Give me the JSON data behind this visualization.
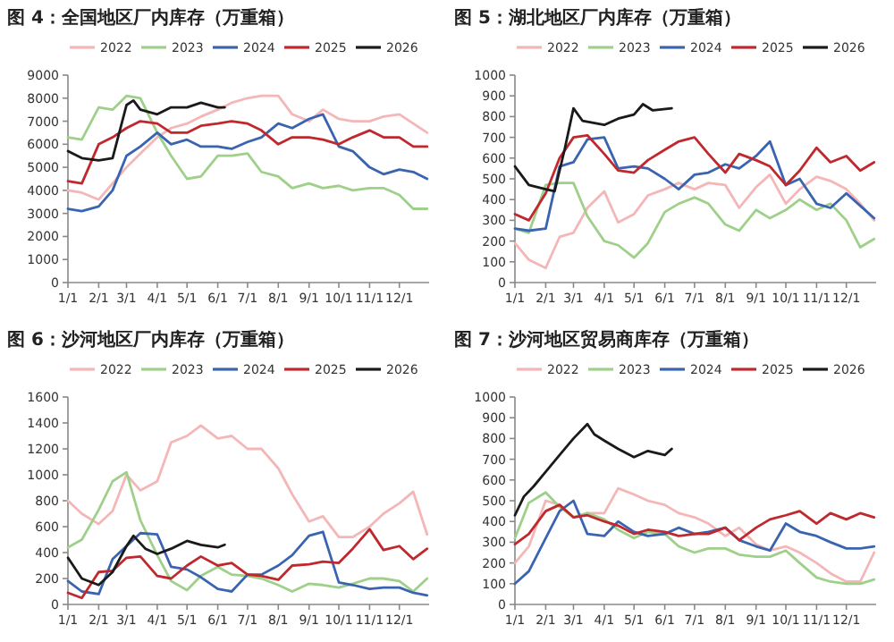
{
  "chart_data": [
    {
      "type": "line",
      "title": "图 4：全国地区厂内库存（万重箱）",
      "legend": "top",
      "grid": false,
      "x": [
        "--01-01",
        "--01-15",
        "--02-01",
        "--02-15",
        "--03-01",
        "--03-15",
        "--04-01",
        "--04-15",
        "--05-01",
        "--05-15",
        "--06-01",
        "--06-15",
        "--07-01",
        "--07-15",
        "--08-01",
        "--08-15",
        "--09-01",
        "--09-15",
        "--10-01",
        "--10-15",
        "--11-01",
        "--11-15",
        "--12-01",
        "--12-15",
        "--12-29"
      ],
      "xlim": [
        "--01-01",
        "--12-31"
      ],
      "xticks": [
        {
          "value": "--01-01",
          "label": "1/1"
        },
        {
          "value": "--02-01",
          "label": "2/1"
        },
        {
          "value": "--03-01",
          "label": "3/1"
        },
        {
          "value": "--04-01",
          "label": "4/1"
        },
        {
          "value": "--05-01",
          "label": "5/1"
        },
        {
          "value": "--06-01",
          "label": "6/1"
        },
        {
          "value": "--07-01",
          "label": "7/1"
        },
        {
          "value": "--08-01",
          "label": "8/1"
        },
        {
          "value": "--09-01",
          "label": "9/1"
        },
        {
          "value": "--10-01",
          "label": "10/1"
        },
        {
          "value": "--11-01",
          "label": "11/1"
        },
        {
          "value": "--12-01",
          "label": "12/1"
        }
      ],
      "ylim": [
        0,
        9000
      ],
      "yticks": [
        0,
        1000,
        2000,
        3000,
        4000,
        5000,
        6000,
        7000,
        8000,
        9000
      ],
      "series": [
        {
          "name": "2022",
          "color": "#f4b6b6",
          "values": [
            4000,
            3900,
            3600,
            4300,
            5000,
            5600,
            6300,
            6700,
            6900,
            7200,
            7500,
            7800,
            8000,
            8100,
            8100,
            7300,
            7000,
            7500,
            7100,
            7000,
            7000,
            7200,
            7300,
            6900,
            6500
          ]
        },
        {
          "name": "2023",
          "color": "#9fd08a",
          "values": [
            6300,
            6200,
            7600,
            7500,
            8100,
            8000,
            6500,
            5500,
            4500,
            4600,
            5500,
            5500,
            5600,
            4800,
            4600,
            4100,
            4300,
            4100,
            4200,
            4000,
            4100,
            4100,
            3800,
            3200,
            3200
          ]
        },
        {
          "name": "2024",
          "color": "#3a64b0",
          "values": [
            3200,
            3100,
            3300,
            4000,
            5500,
            5900,
            6500,
            6000,
            6200,
            5900,
            5900,
            5800,
            6100,
            6300,
            6900,
            6700,
            7100,
            7300,
            5900,
            5700,
            5000,
            4700,
            4900,
            4800,
            4500
          ]
        },
        {
          "name": "2025",
          "color": "#c0282d",
          "values": [
            4400,
            4300,
            6000,
            6300,
            6700,
            7000,
            6900,
            6500,
            6500,
            6800,
            6900,
            7000,
            6900,
            6600,
            6000,
            6300,
            6300,
            6200,
            6000,
            6300,
            6600,
            6300,
            6300,
            5900,
            5900
          ]
        },
        {
          "name": "2026",
          "color": "#1a1a1a",
          "x": [
            "--01-01",
            "--01-15",
            "--02-01",
            "--02-15",
            "--03-01",
            "--03-08",
            "--03-15",
            "--04-01",
            "--04-15",
            "--05-01",
            "--05-15",
            "--06-01",
            "--06-08"
          ],
          "values": [
            5700,
            5400,
            5300,
            5400,
            7700,
            7900,
            7500,
            7300,
            7600,
            7600,
            7800,
            7600,
            7600
          ]
        }
      ]
    },
    {
      "type": "line",
      "title": "图 5：湖北地区厂内库存（万重箱）",
      "legend": "top",
      "grid": false,
      "x": [
        "--01-01",
        "--01-15",
        "--02-01",
        "--02-15",
        "--03-01",
        "--03-15",
        "--04-01",
        "--04-15",
        "--05-01",
        "--05-15",
        "--06-01",
        "--06-15",
        "--07-01",
        "--07-15",
        "--08-01",
        "--08-15",
        "--09-01",
        "--09-15",
        "--10-01",
        "--10-15",
        "--11-01",
        "--11-15",
        "--12-01",
        "--12-15",
        "--12-29"
      ],
      "xlim": [
        "--01-01",
        "--12-31"
      ],
      "xticks": [
        {
          "value": "--01-01",
          "label": "1/1"
        },
        {
          "value": "--02-01",
          "label": "2/1"
        },
        {
          "value": "--03-01",
          "label": "3/1"
        },
        {
          "value": "--04-01",
          "label": "4/1"
        },
        {
          "value": "--05-01",
          "label": "5/1"
        },
        {
          "value": "--06-01",
          "label": "6/1"
        },
        {
          "value": "--07-01",
          "label": "7/1"
        },
        {
          "value": "--08-01",
          "label": "8/1"
        },
        {
          "value": "--09-01",
          "label": "9/1"
        },
        {
          "value": "--10-01",
          "label": "10/1"
        },
        {
          "value": "--11-01",
          "label": "11/1"
        },
        {
          "value": "--12-01",
          "label": "12/1"
        }
      ],
      "ylim": [
        0,
        1000
      ],
      "yticks": [
        0,
        100,
        200,
        300,
        400,
        500,
        600,
        700,
        800,
        900,
        1000
      ],
      "series": [
        {
          "name": "2022",
          "color": "#f4b6b6",
          "values": [
            190,
            110,
            70,
            220,
            240,
            360,
            440,
            290,
            330,
            420,
            450,
            480,
            450,
            480,
            470,
            360,
            460,
            520,
            380,
            450,
            510,
            490,
            450,
            380,
            300
          ]
        },
        {
          "name": "2023",
          "color": "#9fd08a",
          "values": [
            260,
            240,
            470,
            480,
            480,
            320,
            200,
            180,
            120,
            190,
            340,
            380,
            410,
            380,
            280,
            250,
            350,
            310,
            350,
            400,
            350,
            380,
            300,
            170,
            210
          ]
        },
        {
          "name": "2024",
          "color": "#3a64b0",
          "values": [
            260,
            250,
            260,
            560,
            580,
            690,
            700,
            550,
            560,
            550,
            500,
            450,
            520,
            530,
            570,
            550,
            610,
            680,
            470,
            500,
            380,
            360,
            430,
            370,
            310
          ]
        },
        {
          "name": "2025",
          "color": "#c0282d",
          "values": [
            330,
            300,
            430,
            600,
            700,
            710,
            620,
            540,
            530,
            590,
            640,
            680,
            700,
            620,
            530,
            620,
            590,
            560,
            470,
            540,
            650,
            580,
            610,
            540,
            580
          ]
        },
        {
          "name": "2026",
          "color": "#1a1a1a",
          "x": [
            "--01-01",
            "--01-15",
            "--02-01",
            "--02-10",
            "--02-20",
            "--03-01",
            "--03-10",
            "--04-01",
            "--04-15",
            "--05-01",
            "--05-10",
            "--05-20",
            "--06-08"
          ],
          "values": [
            560,
            470,
            450,
            440,
            640,
            840,
            780,
            760,
            790,
            810,
            860,
            830,
            840
          ]
        }
      ]
    },
    {
      "type": "line",
      "title": "图 6：沙河地区厂内库存（万重箱）",
      "legend": "top",
      "grid": false,
      "x": [
        "--01-01",
        "--01-15",
        "--02-01",
        "--02-15",
        "--03-01",
        "--03-15",
        "--04-01",
        "--04-15",
        "--05-01",
        "--05-15",
        "--06-01",
        "--06-15",
        "--07-01",
        "--07-15",
        "--08-01",
        "--08-15",
        "--09-01",
        "--09-15",
        "--10-01",
        "--10-15",
        "--11-01",
        "--11-15",
        "--12-01",
        "--12-15",
        "--12-29"
      ],
      "xlim": [
        "--01-01",
        "--12-31"
      ],
      "xticks": [
        {
          "value": "--01-01",
          "label": "1/1"
        },
        {
          "value": "--02-01",
          "label": "2/1"
        },
        {
          "value": "--03-01",
          "label": "3/1"
        },
        {
          "value": "--04-01",
          "label": "4/1"
        },
        {
          "value": "--05-01",
          "label": "5/1"
        },
        {
          "value": "--06-01",
          "label": "6/1"
        },
        {
          "value": "--07-01",
          "label": "7/1"
        },
        {
          "value": "--08-01",
          "label": "8/1"
        },
        {
          "value": "--09-01",
          "label": "9/1"
        },
        {
          "value": "--10-01",
          "label": "10/1"
        },
        {
          "value": "--11-01",
          "label": "11/1"
        },
        {
          "value": "--12-01",
          "label": "12/1"
        }
      ],
      "ylim": [
        0,
        1600
      ],
      "yticks": [
        0,
        200,
        400,
        600,
        800,
        1000,
        1200,
        1400,
        1600
      ],
      "series": [
        {
          "name": "2022",
          "color": "#f4b6b6",
          "values": [
            800,
            700,
            620,
            720,
            1000,
            880,
            950,
            1250,
            1300,
            1380,
            1280,
            1300,
            1200,
            1200,
            1050,
            850,
            640,
            680,
            520,
            520,
            600,
            700,
            780,
            870,
            540
          ]
        },
        {
          "name": "2023",
          "color": "#9fd08a",
          "values": [
            440,
            500,
            730,
            950,
            1020,
            650,
            380,
            180,
            110,
            220,
            290,
            230,
            220,
            200,
            150,
            100,
            160,
            150,
            130,
            160,
            200,
            200,
            180,
            100,
            200
          ]
        },
        {
          "name": "2024",
          "color": "#3a64b0",
          "values": [
            180,
            100,
            80,
            350,
            450,
            550,
            540,
            290,
            270,
            210,
            120,
            100,
            230,
            230,
            300,
            380,
            530,
            560,
            170,
            150,
            120,
            130,
            130,
            90,
            70
          ]
        },
        {
          "name": "2025",
          "color": "#c0282d",
          "values": [
            90,
            50,
            250,
            260,
            360,
            370,
            220,
            200,
            300,
            370,
            300,
            320,
            230,
            220,
            190,
            300,
            310,
            330,
            320,
            430,
            580,
            420,
            450,
            350,
            430
          ]
        },
        {
          "name": "2026",
          "color": "#1a1a1a",
          "x": [
            "--01-01",
            "--01-15",
            "--02-01",
            "--02-15",
            "--03-01",
            "--03-08",
            "--03-20",
            "--04-01",
            "--04-15",
            "--05-01",
            "--05-15",
            "--06-01",
            "--06-08"
          ],
          "values": [
            360,
            200,
            150,
            250,
            450,
            530,
            430,
            390,
            430,
            490,
            460,
            440,
            460
          ]
        }
      ]
    },
    {
      "type": "line",
      "title": "图 7：沙河地区贸易商库存（万重箱）",
      "legend": "top",
      "grid": false,
      "x": [
        "--01-01",
        "--01-15",
        "--02-01",
        "--02-15",
        "--03-01",
        "--03-15",
        "--04-01",
        "--04-15",
        "--05-01",
        "--05-15",
        "--06-01",
        "--06-15",
        "--07-01",
        "--07-15",
        "--08-01",
        "--08-15",
        "--09-01",
        "--09-15",
        "--10-01",
        "--10-15",
        "--11-01",
        "--11-15",
        "--12-01",
        "--12-15",
        "--12-29"
      ],
      "xlim": [
        "--01-01",
        "--12-31"
      ],
      "xticks": [
        {
          "value": "--01-01",
          "label": "1/1"
        },
        {
          "value": "--02-01",
          "label": "2/1"
        },
        {
          "value": "--03-01",
          "label": "3/1"
        },
        {
          "value": "--04-01",
          "label": "4/1"
        },
        {
          "value": "--05-01",
          "label": "5/1"
        },
        {
          "value": "--06-01",
          "label": "6/1"
        },
        {
          "value": "--07-01",
          "label": "7/1"
        },
        {
          "value": "--08-01",
          "label": "8/1"
        },
        {
          "value": "--09-01",
          "label": "9/1"
        },
        {
          "value": "--10-01",
          "label": "10/1"
        },
        {
          "value": "--11-01",
          "label": "11/1"
        },
        {
          "value": "--12-01",
          "label": "12/1"
        }
      ],
      "ylim": [
        0,
        1000
      ],
      "yticks": [
        0,
        100,
        200,
        300,
        400,
        500,
        600,
        700,
        800,
        900,
        1000
      ],
      "series": [
        {
          "name": "2022",
          "color": "#f4b6b6",
          "values": [
            200,
            280,
            500,
            480,
            420,
            440,
            440,
            560,
            530,
            500,
            480,
            440,
            420,
            390,
            330,
            370,
            290,
            260,
            280,
            250,
            200,
            150,
            110,
            110,
            250
          ]
        },
        {
          "name": "2023",
          "color": "#9fd08a",
          "values": [
            320,
            490,
            540,
            470,
            420,
            440,
            410,
            360,
            320,
            350,
            340,
            280,
            250,
            270,
            270,
            240,
            230,
            230,
            260,
            200,
            130,
            110,
            100,
            100,
            120
          ]
        },
        {
          "name": "2024",
          "color": "#3a64b0",
          "values": [
            100,
            160,
            320,
            450,
            500,
            340,
            330,
            400,
            350,
            330,
            340,
            370,
            340,
            350,
            370,
            310,
            280,
            260,
            390,
            350,
            330,
            300,
            270,
            270,
            280
          ]
        },
        {
          "name": "2025",
          "color": "#c0282d",
          "values": [
            290,
            340,
            450,
            480,
            420,
            430,
            400,
            380,
            340,
            360,
            350,
            330,
            340,
            340,
            370,
            310,
            370,
            410,
            430,
            450,
            390,
            440,
            410,
            440,
            420
          ]
        },
        {
          "name": "2026",
          "color": "#1a1a1a",
          "x": [
            "--01-01",
            "--01-10",
            "--01-20",
            "--02-01",
            "--02-15",
            "--03-01",
            "--03-15",
            "--03-22",
            "--04-01",
            "--04-15",
            "--05-01",
            "--05-15",
            "--06-01",
            "--06-08"
          ],
          "values": [
            430,
            520,
            570,
            640,
            720,
            800,
            870,
            820,
            790,
            750,
            710,
            740,
            720,
            750
          ]
        }
      ]
    }
  ]
}
